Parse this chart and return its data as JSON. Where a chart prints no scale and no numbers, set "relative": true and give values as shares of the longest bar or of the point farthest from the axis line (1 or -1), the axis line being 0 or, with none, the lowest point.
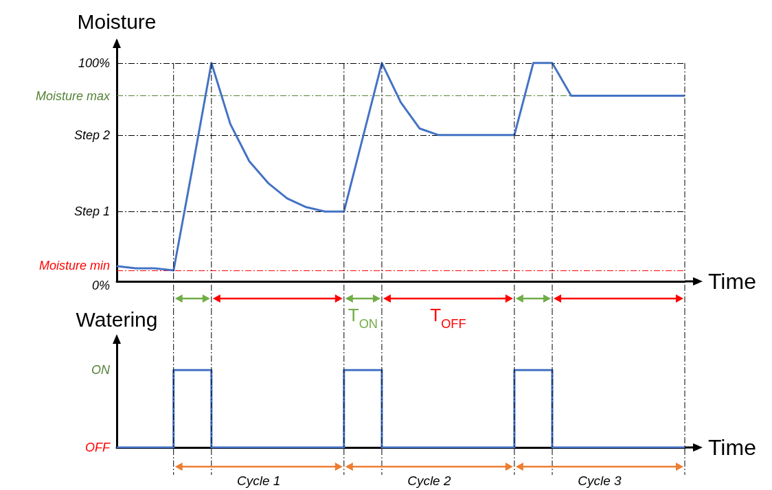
{
  "chart_data": [
    {
      "type": "line",
      "ylabel": "Moisture",
      "xlabel": "Time",
      "categories": [
        null,
        null,
        null,
        null,
        null,
        null,
        null,
        null,
        null,
        null,
        null,
        null,
        null,
        null,
        null,
        null,
        null,
        null,
        null,
        null,
        null,
        null,
        null,
        null,
        null,
        null,
        null,
        null,
        null,
        null,
        null
      ],
      "series": [
        {
          "color": "#4472c4",
          "values": [
            7,
            6,
            6,
            5,
            52,
            100,
            72,
            55,
            45,
            38,
            34,
            32,
            32,
            66,
            100,
            82,
            70,
            67,
            67,
            67,
            67,
            67,
            100,
            100,
            85,
            85,
            85,
            85,
            85,
            85,
            85
          ]
        }
      ],
      "ylim": [
        0,
        110
      ],
      "yticks": [
        {
          "value": 0,
          "label": "0%"
        },
        {
          "value": 5,
          "label": "Moisture min"
        },
        {
          "value": 32,
          "label": "Step 1"
        },
        {
          "value": 67,
          "label": "Step 2"
        },
        {
          "value": 85,
          "label": "Moisture max"
        },
        {
          "value": 100,
          "label": "100%"
        }
      ],
      "ref_lines": [
        {
          "axis": "y",
          "value": 85,
          "color": "#548235"
        },
        {
          "axis": "y",
          "value": 5,
          "color": "#ff0000"
        }
      ],
      "grid": true,
      "tick_labels": "y",
      "marker": "none"
    },
    {
      "type": "step",
      "ylabel": "Watering",
      "xlabel": "Time",
      "categories": [
        null,
        null,
        null,
        null,
        null,
        null,
        null,
        null,
        null,
        null,
        null,
        null,
        null,
        null,
        null,
        null,
        null,
        null,
        null,
        null,
        null,
        null,
        null,
        null,
        null,
        null,
        null,
        null,
        null,
        null,
        null
      ],
      "series": [
        {
          "color": "#4472c4",
          "values": [
            0,
            0,
            0,
            1,
            1,
            0,
            0,
            0,
            0,
            0,
            0,
            0,
            1,
            1,
            0,
            0,
            0,
            0,
            0,
            0,
            0,
            1,
            1,
            0,
            0,
            0,
            0,
            0,
            0,
            0,
            0
          ]
        }
      ],
      "relative": true,
      "grid": "x",
      "annotations": [
        "OFF",
        "ON",
        "T$_{ON}$",
        "T$_{OFF}$",
        "Cycle 1",
        "Cycle 2",
        "Cycle 3"
      ],
      "tick_labels": "y",
      "marker": "none"
    }
  ]
}
